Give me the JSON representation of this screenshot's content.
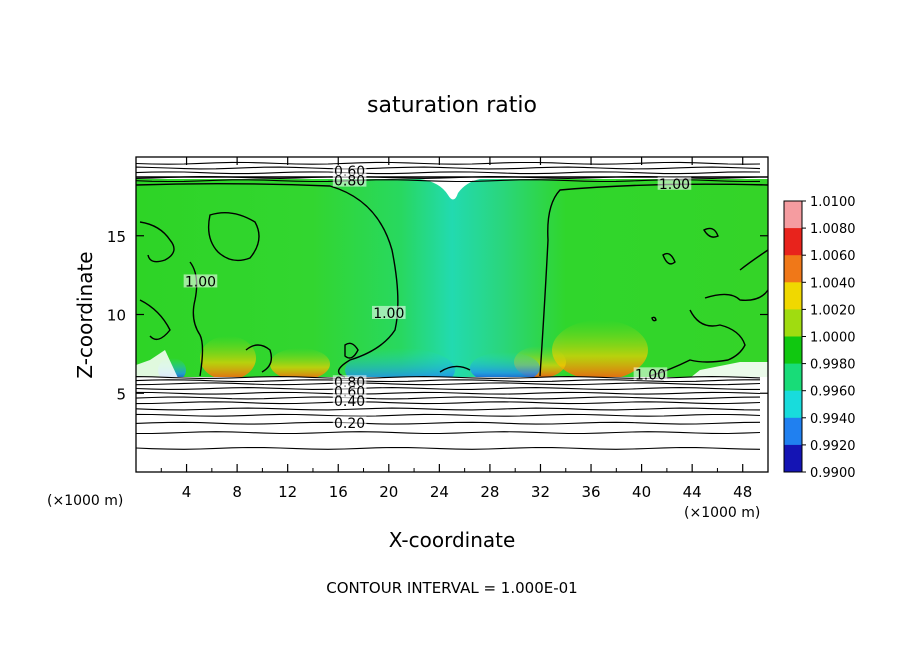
{
  "chart_data": {
    "type": "heatmap",
    "title": "saturation ratio",
    "xlabel": "X-coordinate",
    "ylabel": "Z-coordinate",
    "x_unit_left": "(×1000 m)",
    "x_unit_right": "(×1000 m)",
    "footer": "CONTOUR INTERVAL = 1.000E-01",
    "xlim": [
      0,
      50
    ],
    "ylim": [
      0,
      20
    ],
    "x_ticks": [
      "4",
      "8",
      "12",
      "16",
      "20",
      "24",
      "28",
      "32",
      "36",
      "40",
      "44",
      "48"
    ],
    "x_tick_values": [
      4,
      8,
      12,
      16,
      20,
      24,
      28,
      32,
      36,
      40,
      44,
      48
    ],
    "y_ticks": [
      "5",
      "10",
      "15"
    ],
    "y_tick_values": [
      5,
      10,
      15
    ],
    "colorbar": {
      "labels": [
        "1.0100",
        "1.0080",
        "1.0060",
        "1.0040",
        "1.0020",
        "1.0000",
        "0.9980",
        "0.9960",
        "0.9940",
        "0.9920",
        "0.9900"
      ],
      "colors": [
        "#f59ca0",
        "#e8231c",
        "#f07818",
        "#f0d800",
        "#a0dc10",
        "#10c810",
        "#18dc78",
        "#18dcdc",
        "#2080f0",
        "#1414b4",
        "#5c1a94"
      ]
    },
    "contour_labels": [
      {
        "text": "0.60",
        "x": 16.9,
        "z": 19.1
      },
      {
        "text": "0.80",
        "x": 16.9,
        "z": 18.5
      },
      {
        "text": "1.00",
        "x": 42.6,
        "z": 18.3
      },
      {
        "text": "1.00",
        "x": 5.1,
        "z": 12.1
      },
      {
        "text": "1.00",
        "x": 20.0,
        "z": 10.1
      },
      {
        "text": "1.00",
        "x": 40.7,
        "z": 6.2
      },
      {
        "text": "0.80",
        "x": 16.9,
        "z": 5.7
      },
      {
        "text": "0.60",
        "x": 16.9,
        "z": 5.1
      },
      {
        "text": "0.40",
        "x": 16.9,
        "z": 4.5
      },
      {
        "text": "0.20",
        "x": 16.9,
        "z": 3.1
      }
    ],
    "flat_contours_z": [
      1.5,
      2.5,
      3.1,
      3.6,
      4.0,
      4.4,
      4.7,
      5.0,
      5.3,
      5.6,
      5.8,
      6.0,
      18.5,
      18.7,
      19.0,
      19.3,
      19.6
    ]
  }
}
